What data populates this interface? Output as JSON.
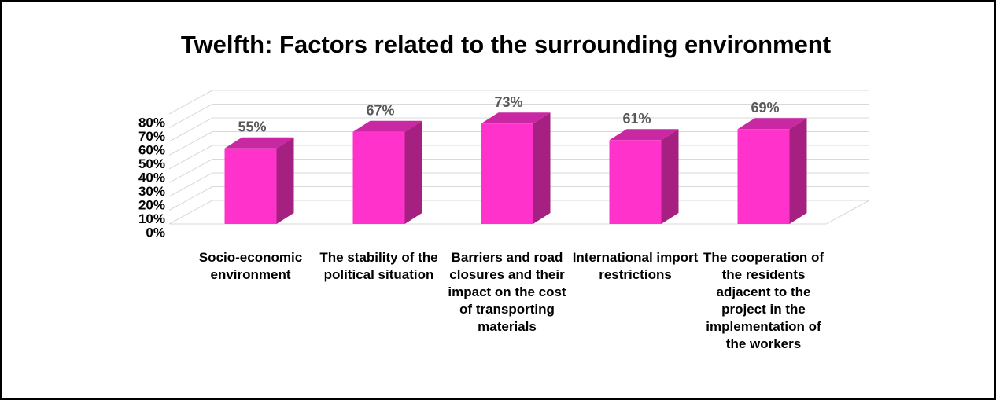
{
  "chart_data": {
    "type": "bar",
    "title": "Twelfth: Factors related to the surrounding environment",
    "categories": [
      "Socio-economic environment",
      "The stability of the political situation",
      "Barriers and road closures and their impact on the cost of transporting materials",
      "International import restrictions",
      "The cooperation of the residents adjacent to the project in the implementation of the workers"
    ],
    "values": [
      55,
      67,
      73,
      61,
      69
    ],
    "value_labels": [
      "55%",
      "67%",
      "73%",
      "61%",
      "69%"
    ],
    "color": "#ff33cc",
    "ylim": [
      0,
      80
    ],
    "yticks": [
      {
        "value": 0,
        "label": "0%"
      },
      {
        "value": 10,
        "label": "10%"
      },
      {
        "value": 20,
        "label": "20%"
      },
      {
        "value": 30,
        "label": "30%"
      },
      {
        "value": 40,
        "label": "40%"
      },
      {
        "value": 50,
        "label": "50%"
      },
      {
        "value": 60,
        "label": "60%"
      },
      {
        "value": 70,
        "label": "70%"
      },
      {
        "value": 80,
        "label": "80%"
      }
    ],
    "grid": true
  }
}
